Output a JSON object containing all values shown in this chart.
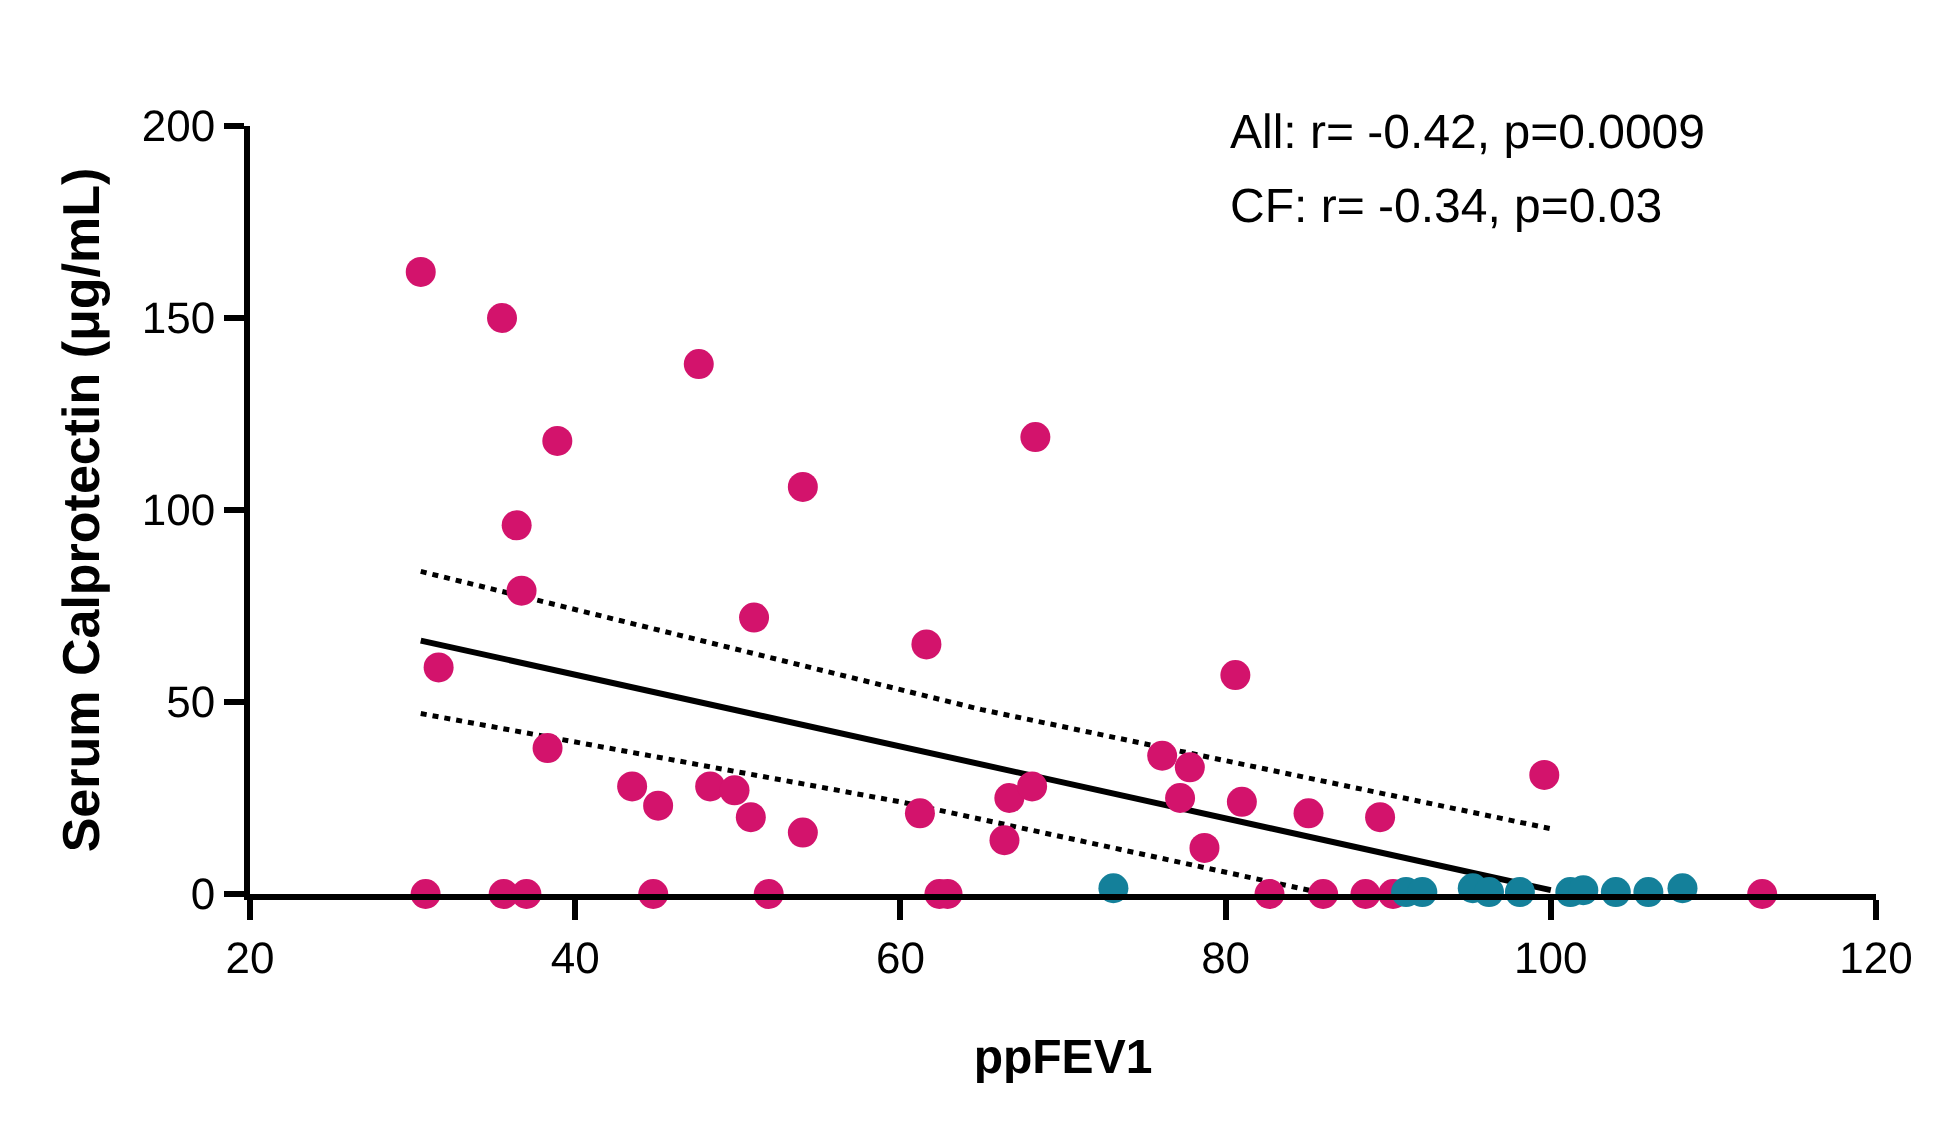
{
  "chart_data": {
    "type": "scatter",
    "xlabel": "ppFEV1",
    "ylabel": "Serum Calprotectin (μg/mL)",
    "annotations": [
      "All: r= -0.42, p=0.0009",
      "CF: r= -0.34, p=0.03"
    ],
    "xlim": [
      20,
      120
    ],
    "xticks": [
      20,
      40,
      60,
      80,
      100,
      120
    ],
    "ylim": [
      0,
      200
    ],
    "yticks": [
      0,
      50,
      100,
      150,
      200
    ],
    "grid": false,
    "marker": "circle",
    "series": [
      {
        "color": "#d3136c",
        "x": [
          30.5,
          35.5,
          36.4,
          36.7,
          38.9,
          31.6,
          38.3,
          43.5,
          45.1,
          47.6,
          48.3,
          49.8,
          50.8,
          51.0,
          54.0,
          54.0,
          61.6,
          61.2,
          66.7,
          66.4,
          68.1,
          68.3,
          76.1,
          77.2,
          77.8,
          78.7,
          80.6,
          81.0,
          85.1,
          89.5,
          99.6,
          30.8,
          35.6,
          37.0,
          44.8,
          51.9,
          62.4,
          62.9,
          82.7,
          86.0,
          88.6,
          90.3,
          113.0
        ],
        "values": [
          162,
          150,
          96,
          79,
          118,
          59,
          38,
          28,
          23,
          138,
          28,
          27,
          20,
          72,
          106,
          16,
          65,
          21,
          25,
          14,
          28,
          119,
          36,
          25,
          33,
          12,
          57,
          24,
          21,
          20,
          31,
          0,
          0,
          0,
          0,
          0,
          0,
          0,
          0,
          0,
          0,
          0,
          0
        ]
      },
      {
        "color": "#14809a",
        "x": [
          73.1,
          91.1,
          92.1,
          95.2,
          96.2,
          98.1,
          101.2,
          102.0,
          104.0,
          106.0,
          108.1
        ],
        "values": [
          1.5,
          0.5,
          0.5,
          1.5,
          0.5,
          0.5,
          0.5,
          1,
          0.5,
          0.5,
          1.5
        ]
      },
      {
        "type": "line",
        "marker": "none",
        "color": "#000000",
        "line_style": "solid",
        "x": [
          30.5,
          100
        ],
        "values": [
          66,
          1
        ]
      },
      {
        "type": "line",
        "marker": "none",
        "color": "#000000",
        "line_style": "dotted",
        "x": [
          30.5,
          65,
          100
        ],
        "values": [
          84,
          48,
          17
        ]
      },
      {
        "type": "line",
        "marker": "none",
        "color": "#000000",
        "line_style": "dotted",
        "x": [
          30.5,
          60,
          86.2
        ],
        "values": [
          47,
          24,
          0
        ]
      }
    ]
  }
}
